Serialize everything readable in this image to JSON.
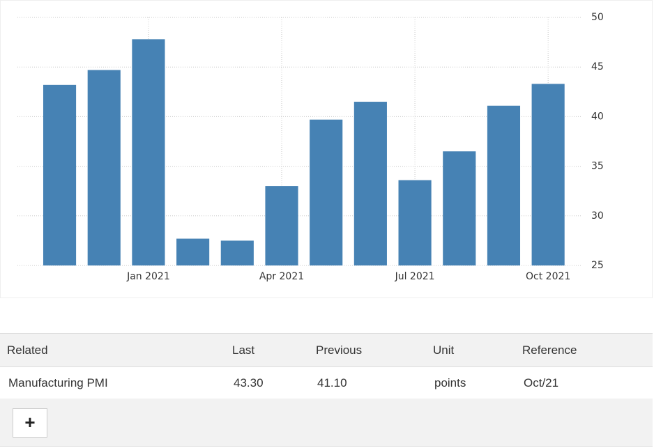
{
  "chart_data": {
    "type": "bar",
    "categories": [
      null,
      null,
      "Jan 2021",
      null,
      null,
      "Apr 2021",
      null,
      null,
      "Jul 2021",
      null,
      null,
      "Oct 2021"
    ],
    "values": [
      43.2,
      44.7,
      47.8,
      27.7,
      27.5,
      33.0,
      39.7,
      41.5,
      33.6,
      36.5,
      41.1,
      43.3
    ],
    "color": "#4682b4",
    "ylim": [
      25,
      50
    ],
    "yticks": [
      25,
      30,
      35,
      40,
      45,
      50
    ],
    "grid": true
  },
  "table": {
    "header": [
      "Related",
      "Last",
      "Previous",
      "Unit",
      "Reference"
    ],
    "rows": [
      [
        "Manufacturing PMI",
        "43.30",
        "41.10",
        "points",
        "Oct/21"
      ]
    ]
  },
  "add_button": "+"
}
